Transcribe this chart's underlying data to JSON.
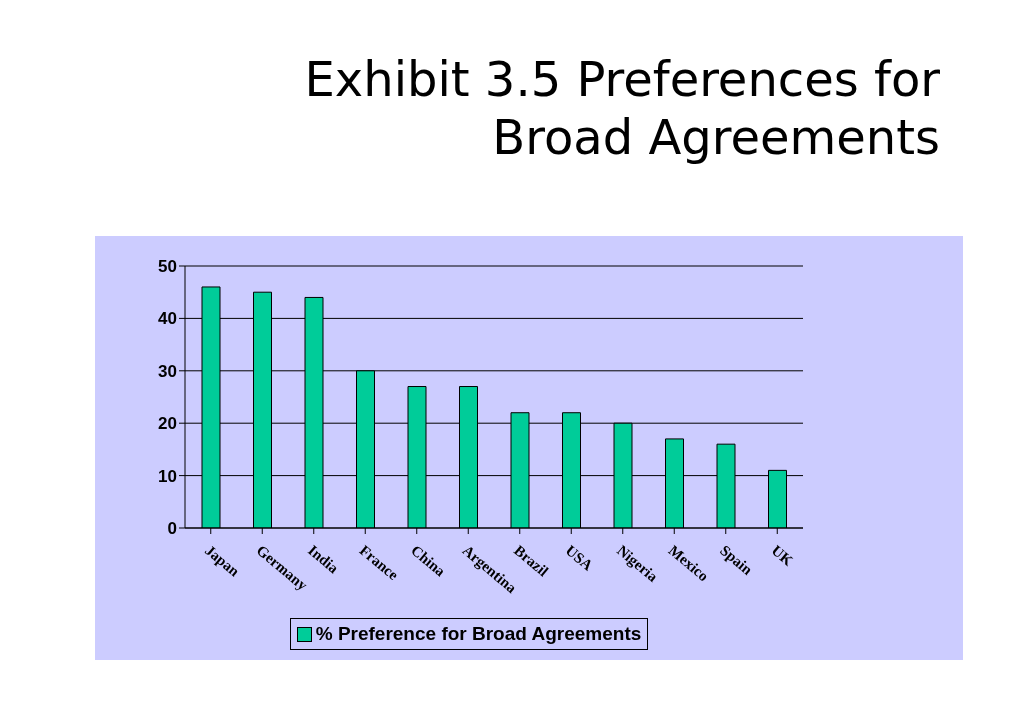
{
  "chart_data": {
    "type": "bar",
    "title": "Exhibit 3.5  Preferences for Broad Agreements",
    "categories": [
      "Japan",
      "Germany",
      "India",
      "France",
      "China",
      "Argentina",
      "Brazil",
      "USA",
      "Nigeria",
      "Mexico",
      "Spain",
      "UK"
    ],
    "series": [
      {
        "name": "% Preference for Broad Agreements",
        "color": "#00cc99",
        "values": [
          46,
          45,
          44,
          30,
          27,
          27,
          22,
          22,
          20,
          17,
          16,
          11
        ]
      }
    ],
    "ylim": [
      0,
      50
    ],
    "yticks": [
      0,
      10,
      20,
      30,
      40,
      50
    ],
    "grid": "y",
    "legend": "bottom"
  }
}
